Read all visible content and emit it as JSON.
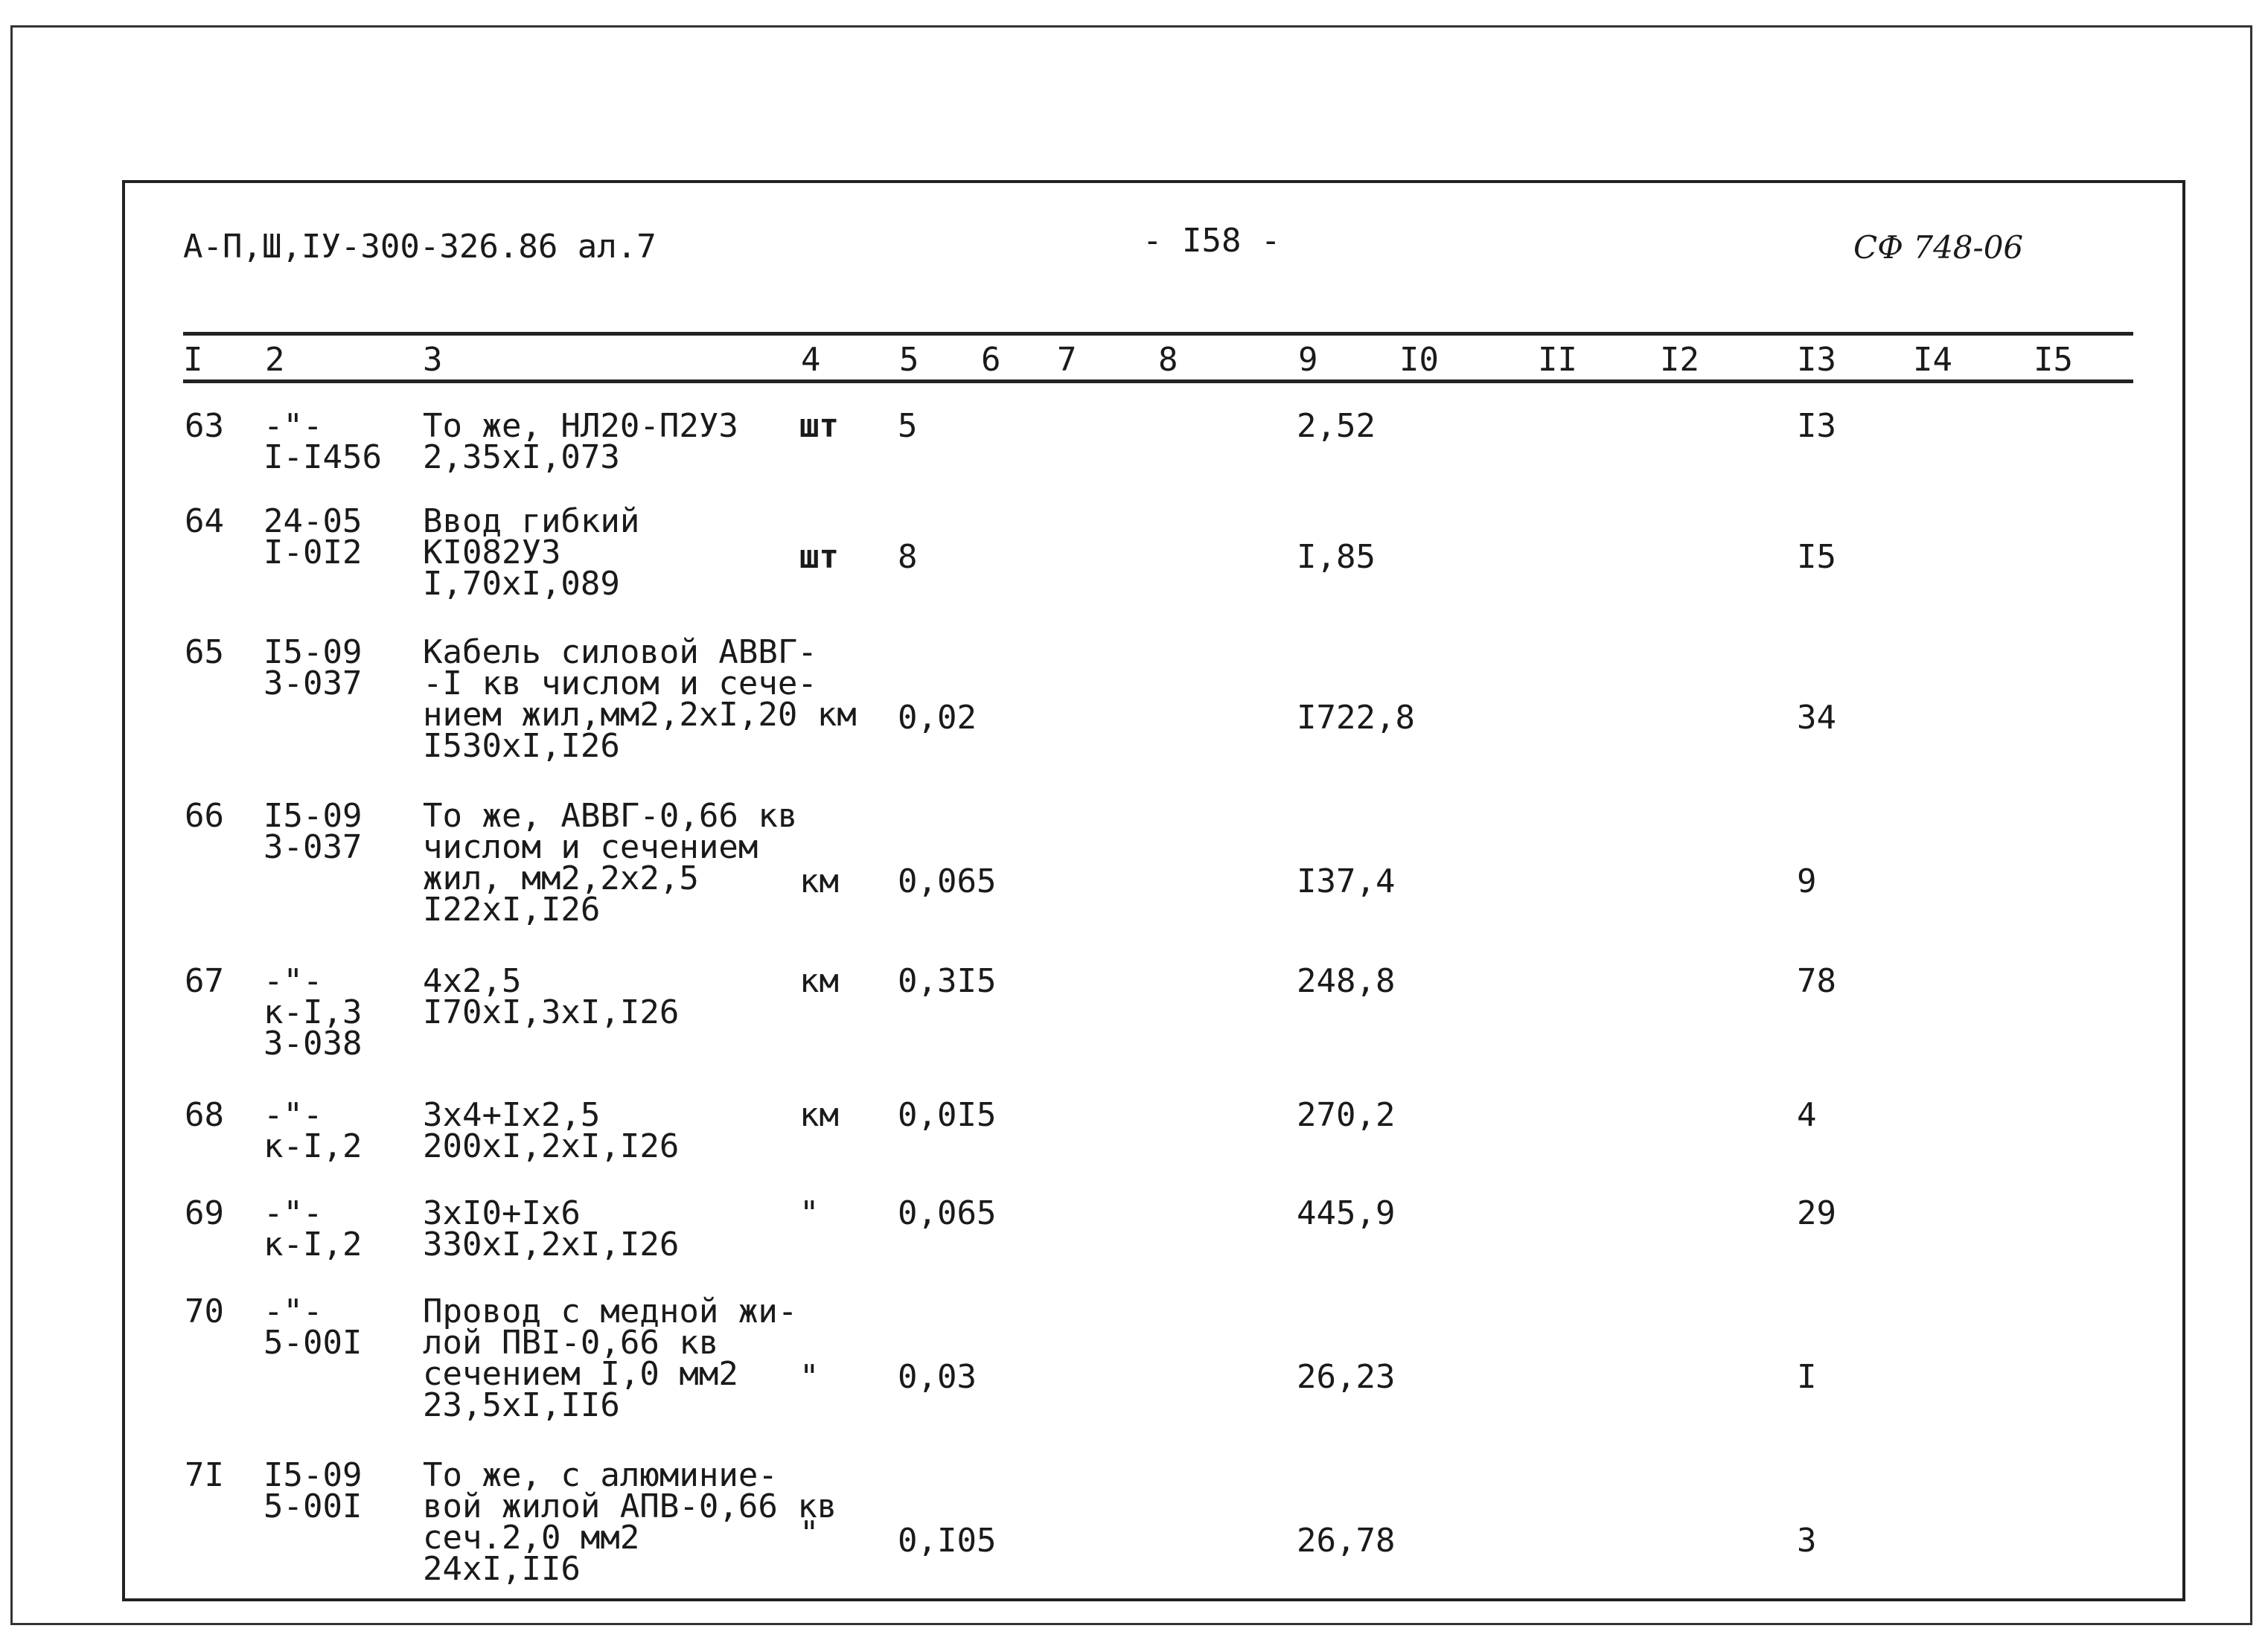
{
  "header": {
    "doc_code": "А-П,Ш,IУ-300-326.86  ал.7",
    "page_number": "- I58 -",
    "stamp": "СФ 748-06"
  },
  "column_numbers": [
    "I",
    "2",
    "3",
    "4",
    "5",
    "6",
    "7",
    "8",
    "9",
    "I0",
    "II",
    "I2",
    "I3",
    "I4",
    "I5"
  ],
  "rows": [
    {
      "c1": "63",
      "c2": "-\"-\nI-I456",
      "c3": "То же, НЛ20-П2УЗ\n2,35хI,073",
      "c4": "шт",
      "c5": "5",
      "c9": "2,52",
      "c13": "I3"
    },
    {
      "c1": "64",
      "c2": "24-05\nI-0I2",
      "c3": "Ввод гибкий\nКI082УЗ\nI,70хI,089",
      "c4": "шт",
      "c5": "8",
      "c9": "I,85",
      "c13": "I5"
    },
    {
      "c1": "65",
      "c2": "I5-09\n3-037",
      "c3": "Кабель силовой АВВГ-\n-I кв числом и сече-\nнием жил,мм2,2хI,20 км\nI530хI,I26",
      "c4": "",
      "c5": "0,02",
      "c9": "I722,8",
      "c13": "34"
    },
    {
      "c1": "66",
      "c2": "I5-09\n3-037",
      "c3": "То же, АВВГ-0,66 кв\nчислом и сечением\nжил, мм2,2х2,5\nI22хI,I26",
      "c4": "км",
      "c5": "0,065",
      "c9": "I37,4",
      "c13": "9"
    },
    {
      "c1": "67",
      "c2": "-\"-\nк-I,3\n3-038",
      "c3": "4х2,5\nI70хI,3хI,I26",
      "c4": "км",
      "c5": "0,3I5",
      "c9": "248,8",
      "c13": "78"
    },
    {
      "c1": "68",
      "c2": "-\"-\nк-I,2",
      "c3": "3х4+Iх2,5\n200хI,2хI,I26",
      "c4": "км",
      "c5": "0,0I5",
      "c9": "270,2",
      "c13": "4"
    },
    {
      "c1": "69",
      "c2": "-\"-\nк-I,2",
      "c3": "3хI0+Iх6\n330хI,2хI,I26",
      "c4": "\"",
      "c5": "0,065",
      "c9": "445,9",
      "c13": "29"
    },
    {
      "c1": "70",
      "c2": "-\"-\n5-00I",
      "c3": "Провод с медной жи-\nлой ПВI-0,66 кв\nсечением I,0 мм2\n23,5хI,II6",
      "c4": "\"",
      "c5": "0,03",
      "c9": "26,23",
      "c13": "I"
    },
    {
      "c1": "7I",
      "c2": "I5-09\n5-00I",
      "c3": "То же, с алюминие-\nвой жилой АПВ-0,66 кв\nсеч.2,0 мм2\n24хI,II6",
      "c4": "\"",
      "c5": "0,I05",
      "c9": "26,78",
      "c13": "3"
    }
  ]
}
